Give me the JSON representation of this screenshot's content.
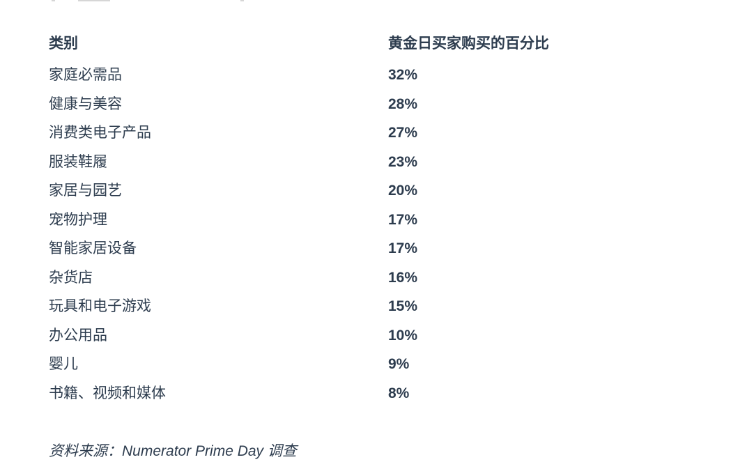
{
  "colors": {
    "text": "#2d3c4e",
    "background": "#ffffff"
  },
  "table": {
    "headers": [
      "类别",
      "黄金日买家购买的百分比"
    ],
    "rows": [
      {
        "category": "家庭必需品",
        "value": "32%"
      },
      {
        "category": "健康与美容",
        "value": "28%"
      },
      {
        "category": "消费类电子产品",
        "value": "27%"
      },
      {
        "category": "服装鞋履",
        "value": "23%"
      },
      {
        "category": "家居与园艺",
        "value": "20%"
      },
      {
        "category": "宠物护理",
        "value": "17%"
      },
      {
        "category": "智能家居设备",
        "value": "17%"
      },
      {
        "category": "杂货店",
        "value": "16%"
      },
      {
        "category": "玩具和电子游戏",
        "value": "15%"
      },
      {
        "category": "办公用品",
        "value": "10%"
      },
      {
        "category": "婴儿",
        "value": "9%"
      },
      {
        "category": "书籍、视频和媒体",
        "value": "8%"
      }
    ]
  },
  "source_note": "资料来源：Numerator Prime Day 调查",
  "chart_data": {
    "type": "table",
    "title": "",
    "columns": [
      "类别",
      "黄金日买家购买的百分比"
    ],
    "categories": [
      "家庭必需品",
      "健康与美容",
      "消费类电子产品",
      "服装鞋履",
      "家居与园艺",
      "宠物护理",
      "智能家居设备",
      "杂货店",
      "玩具和电子游戏",
      "办公用品",
      "婴儿",
      "书籍、视频和媒体"
    ],
    "values_percent": [
      32,
      28,
      27,
      23,
      20,
      17,
      17,
      16,
      15,
      10,
      9,
      8
    ],
    "source": "资料来源：Numerator Prime Day 调查",
    "layout": {
      "grid": false,
      "value_format": "percent"
    }
  }
}
